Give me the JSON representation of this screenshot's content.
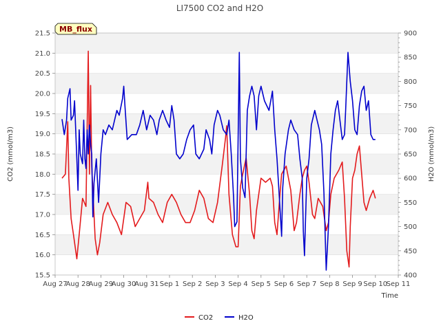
{
  "chart_data": {
    "type": "line",
    "title": "LI7500 CO2 and H2O",
    "badge": "MB_flux",
    "xlabel": "Time",
    "ylabel_left": "CO2 (mmol/m3)",
    "ylabel_right": "H2O (mmol/m3)",
    "x_ticks": [
      "Aug 27",
      "Aug 28",
      "Aug 29",
      "Aug 30",
      "Aug 31",
      "Sep 1",
      "Sep 2",
      "Sep 3",
      "Sep 4",
      "Sep 5",
      "Sep 6",
      "Sep 7",
      "Sep 8",
      "Sep 9",
      "Sep 10",
      "Sep 11"
    ],
    "xlim": [
      0,
      15
    ],
    "ylim_left": [
      15.5,
      21.5
    ],
    "ylim_right": [
      400,
      900
    ],
    "yticks_left": [
      "15.5",
      "16.0",
      "16.5",
      "17.0",
      "17.5",
      "18.0",
      "18.5",
      "19.0",
      "19.5",
      "20.0",
      "20.5",
      "21.0",
      "21.5"
    ],
    "yticks_right": [
      "400",
      "450",
      "500",
      "550",
      "600",
      "650",
      "700",
      "750",
      "800",
      "850",
      "900"
    ],
    "series": [
      {
        "name": "CO2",
        "axis": "left",
        "color": "#e31a1c",
        "points": [
          [
            0.3,
            17.9
          ],
          [
            0.45,
            18.0
          ],
          [
            0.55,
            19.3
          ],
          [
            0.6,
            17.9
          ],
          [
            0.7,
            16.9
          ],
          [
            0.8,
            16.5
          ],
          [
            0.95,
            15.9
          ],
          [
            1.05,
            16.5
          ],
          [
            1.2,
            17.4
          ],
          [
            1.35,
            17.2
          ],
          [
            1.45,
            21.05
          ],
          [
            1.5,
            18.0
          ],
          [
            1.55,
            20.2
          ],
          [
            1.6,
            18.2
          ],
          [
            1.75,
            16.4
          ],
          [
            1.85,
            16.0
          ],
          [
            1.95,
            16.3
          ],
          [
            2.1,
            17.0
          ],
          [
            2.3,
            17.3
          ],
          [
            2.5,
            17.0
          ],
          [
            2.7,
            16.8
          ],
          [
            2.9,
            16.5
          ],
          [
            3.1,
            17.3
          ],
          [
            3.3,
            17.2
          ],
          [
            3.5,
            16.7
          ],
          [
            3.7,
            16.9
          ],
          [
            3.9,
            17.1
          ],
          [
            4.05,
            17.8
          ],
          [
            4.1,
            17.4
          ],
          [
            4.3,
            17.3
          ],
          [
            4.5,
            17.0
          ],
          [
            4.7,
            16.8
          ],
          [
            4.9,
            17.3
          ],
          [
            5.1,
            17.5
          ],
          [
            5.3,
            17.3
          ],
          [
            5.5,
            17.0
          ],
          [
            5.7,
            16.8
          ],
          [
            5.9,
            16.8
          ],
          [
            6.1,
            17.1
          ],
          [
            6.3,
            17.6
          ],
          [
            6.5,
            17.4
          ],
          [
            6.7,
            16.9
          ],
          [
            6.9,
            16.8
          ],
          [
            7.1,
            17.3
          ],
          [
            7.3,
            18.2
          ],
          [
            7.45,
            18.9
          ],
          [
            7.5,
            19.2
          ],
          [
            7.6,
            17.5
          ],
          [
            7.75,
            16.5
          ],
          [
            7.9,
            16.2
          ],
          [
            8.0,
            16.2
          ],
          [
            8.1,
            17.7
          ],
          [
            8.2,
            18.0
          ],
          [
            8.35,
            18.4
          ],
          [
            8.5,
            17.5
          ],
          [
            8.6,
            16.6
          ],
          [
            8.7,
            16.4
          ],
          [
            8.8,
            17.1
          ],
          [
            9.0,
            17.9
          ],
          [
            9.2,
            17.8
          ],
          [
            9.4,
            17.9
          ],
          [
            9.5,
            17.7
          ],
          [
            9.6,
            16.8
          ],
          [
            9.7,
            16.5
          ],
          [
            9.8,
            17.3
          ],
          [
            9.9,
            18.0
          ],
          [
            10.1,
            18.2
          ],
          [
            10.3,
            17.6
          ],
          [
            10.45,
            16.6
          ],
          [
            10.55,
            16.8
          ],
          [
            10.7,
            17.5
          ],
          [
            10.8,
            17.9
          ],
          [
            10.9,
            18.1
          ],
          [
            11.0,
            18.2
          ],
          [
            11.1,
            17.8
          ],
          [
            11.25,
            17.0
          ],
          [
            11.35,
            16.9
          ],
          [
            11.5,
            17.4
          ],
          [
            11.7,
            17.2
          ],
          [
            11.85,
            16.6
          ],
          [
            11.95,
            16.8
          ],
          [
            12.05,
            17.5
          ],
          [
            12.2,
            17.9
          ],
          [
            12.4,
            18.1
          ],
          [
            12.55,
            18.3
          ],
          [
            12.65,
            17.4
          ],
          [
            12.75,
            16.1
          ],
          [
            12.85,
            15.7
          ],
          [
            12.9,
            16.7
          ],
          [
            13.0,
            17.9
          ],
          [
            13.1,
            18.1
          ],
          [
            13.2,
            18.5
          ],
          [
            13.3,
            18.7
          ],
          [
            13.4,
            18.0
          ],
          [
            13.5,
            17.3
          ],
          [
            13.6,
            17.1
          ],
          [
            13.75,
            17.4
          ],
          [
            13.9,
            17.6
          ],
          [
            14.0,
            17.4
          ]
        ]
      },
      {
        "name": "H2O",
        "axis": "right",
        "color": "#0000cc",
        "points": [
          [
            0.3,
            722
          ],
          [
            0.4,
            690
          ],
          [
            0.5,
            720
          ],
          [
            0.55,
            765
          ],
          [
            0.65,
            785
          ],
          [
            0.7,
            720
          ],
          [
            0.8,
            730
          ],
          [
            0.85,
            760
          ],
          [
            0.95,
            640
          ],
          [
            1.0,
            575
          ],
          [
            1.05,
            700
          ],
          [
            1.1,
            650
          ],
          [
            1.2,
            630
          ],
          [
            1.25,
            720
          ],
          [
            1.3,
            640
          ],
          [
            1.35,
            620
          ],
          [
            1.4,
            700
          ],
          [
            1.45,
            650
          ],
          [
            1.5,
            710
          ],
          [
            1.55,
            670
          ],
          [
            1.6,
            650
          ],
          [
            1.65,
            520
          ],
          [
            1.7,
            590
          ],
          [
            1.8,
            640
          ],
          [
            1.9,
            550
          ],
          [
            2.0,
            650
          ],
          [
            2.1,
            700
          ],
          [
            2.2,
            690
          ],
          [
            2.35,
            710
          ],
          [
            2.5,
            700
          ],
          [
            2.7,
            740
          ],
          [
            2.8,
            730
          ],
          [
            2.95,
            765
          ],
          [
            3.0,
            790
          ],
          [
            3.05,
            750
          ],
          [
            3.15,
            680
          ],
          [
            3.35,
            690
          ],
          [
            3.55,
            690
          ],
          [
            3.7,
            710
          ],
          [
            3.85,
            740
          ],
          [
            4.0,
            700
          ],
          [
            4.15,
            730
          ],
          [
            4.3,
            720
          ],
          [
            4.45,
            690
          ],
          [
            4.55,
            720
          ],
          [
            4.7,
            740
          ],
          [
            4.85,
            720
          ],
          [
            5.0,
            705
          ],
          [
            5.1,
            750
          ],
          [
            5.2,
            720
          ],
          [
            5.3,
            650
          ],
          [
            5.45,
            640
          ],
          [
            5.6,
            650
          ],
          [
            5.75,
            680
          ],
          [
            5.9,
            700
          ],
          [
            6.05,
            710
          ],
          [
            6.15,
            650
          ],
          [
            6.3,
            640
          ],
          [
            6.5,
            660
          ],
          [
            6.6,
            700
          ],
          [
            6.75,
            680
          ],
          [
            6.85,
            650
          ],
          [
            6.95,
            710
          ],
          [
            7.1,
            740
          ],
          [
            7.2,
            730
          ],
          [
            7.35,
            700
          ],
          [
            7.5,
            690
          ],
          [
            7.6,
            720
          ],
          [
            7.7,
            650
          ],
          [
            7.8,
            560
          ],
          [
            7.85,
            500
          ],
          [
            7.95,
            510
          ],
          [
            8.05,
            860
          ],
          [
            8.1,
            640
          ],
          [
            8.2,
            580
          ],
          [
            8.3,
            560
          ],
          [
            8.4,
            740
          ],
          [
            8.5,
            770
          ],
          [
            8.6,
            790
          ],
          [
            8.7,
            770
          ],
          [
            8.8,
            700
          ],
          [
            8.9,
            770
          ],
          [
            9.0,
            790
          ],
          [
            9.15,
            760
          ],
          [
            9.35,
            740
          ],
          [
            9.5,
            780
          ],
          [
            9.6,
            700
          ],
          [
            9.7,
            640
          ],
          [
            9.8,
            560
          ],
          [
            9.9,
            480
          ],
          [
            9.95,
            580
          ],
          [
            10.05,
            650
          ],
          [
            10.2,
            700
          ],
          [
            10.3,
            720
          ],
          [
            10.45,
            700
          ],
          [
            10.6,
            690
          ],
          [
            10.7,
            640
          ],
          [
            10.8,
            600
          ],
          [
            10.85,
            490
          ],
          [
            10.9,
            440
          ],
          [
            10.95,
            520
          ],
          [
            11.0,
            600
          ],
          [
            11.1,
            640
          ],
          [
            11.2,
            710
          ],
          [
            11.35,
            740
          ],
          [
            11.45,
            720
          ],
          [
            11.55,
            700
          ],
          [
            11.65,
            670
          ],
          [
            11.75,
            570
          ],
          [
            11.85,
            410
          ],
          [
            11.95,
            500
          ],
          [
            12.05,
            650
          ],
          [
            12.15,
            700
          ],
          [
            12.25,
            740
          ],
          [
            12.35,
            760
          ],
          [
            12.45,
            720
          ],
          [
            12.55,
            680
          ],
          [
            12.65,
            690
          ],
          [
            12.7,
            740
          ],
          [
            12.8,
            860
          ],
          [
            12.9,
            800
          ],
          [
            13.0,
            760
          ],
          [
            13.1,
            700
          ],
          [
            13.2,
            690
          ],
          [
            13.3,
            750
          ],
          [
            13.4,
            780
          ],
          [
            13.5,
            790
          ],
          [
            13.6,
            740
          ],
          [
            13.7,
            760
          ],
          [
            13.8,
            690
          ],
          [
            13.9,
            680
          ],
          [
            14.0,
            680
          ]
        ]
      }
    ]
  }
}
